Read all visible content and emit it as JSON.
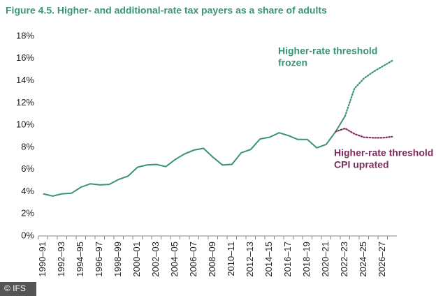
{
  "chart_data": {
    "type": "line",
    "title": "Figure 4.5. Higher- and additional-rate tax payers as a share of adults",
    "categories": [
      "1990–91",
      null,
      "1992–93",
      null,
      "1994–95",
      null,
      "1996–97",
      null,
      "1998–99",
      null,
      "2000–01",
      null,
      "2002–03",
      null,
      "2004–05",
      null,
      "2006–07",
      null,
      "2008–09",
      null,
      "2010–11",
      null,
      "2012–13",
      null,
      "2014–15",
      null,
      "2016–17",
      null,
      "2018–19",
      null,
      "2020–21",
      null,
      "2022–23",
      null,
      "2024–25",
      null,
      "2026–27",
      null
    ],
    "series": [
      {
        "color": "#3a9470",
        "style": "solid",
        "values": [
          3.8,
          3.6,
          3.8,
          3.85,
          4.4,
          4.7,
          4.6,
          4.65,
          5.1,
          5.4,
          6.2,
          6.4,
          6.45,
          6.25,
          6.9,
          7.4,
          7.75,
          7.9,
          7.1,
          6.4,
          6.45,
          7.5,
          7.8,
          8.75,
          8.9,
          9.3,
          9.05,
          8.7,
          8.7,
          7.95,
          8.25,
          9.4,
          10.8,
          null,
          null,
          null,
          null,
          null
        ]
      },
      {
        "color": "#3a9470",
        "style": "dotted",
        "values": [
          null,
          null,
          null,
          null,
          null,
          null,
          null,
          null,
          null,
          null,
          null,
          null,
          null,
          null,
          null,
          null,
          null,
          null,
          null,
          null,
          null,
          null,
          null,
          null,
          null,
          null,
          null,
          null,
          null,
          null,
          null,
          null,
          10.8,
          13.3,
          14.2,
          14.8,
          15.3,
          15.8
        ]
      },
      {
        "color": "#7b2d5e",
        "style": "dotted",
        "values": [
          null,
          null,
          null,
          null,
          null,
          null,
          null,
          null,
          null,
          null,
          null,
          null,
          null,
          null,
          null,
          null,
          null,
          null,
          null,
          null,
          null,
          null,
          null,
          null,
          null,
          null,
          null,
          null,
          null,
          null,
          null,
          9.4,
          9.7,
          9.2,
          8.9,
          8.85,
          8.85,
          8.95
        ]
      }
    ],
    "ylim": [
      0,
      18
    ],
    "yticks": [
      {
        "value": 0,
        "label": "0%"
      },
      {
        "value": 2,
        "label": "2%"
      },
      {
        "value": 4,
        "label": "4%"
      },
      {
        "value": 6,
        "label": "6%"
      },
      {
        "value": 8,
        "label": "8%"
      },
      {
        "value": 10,
        "label": "10%"
      },
      {
        "value": 12,
        "label": "12%"
      },
      {
        "value": 14,
        "label": "14%"
      },
      {
        "value": 16,
        "label": "16%"
      },
      {
        "value": 18,
        "label": "18%"
      }
    ],
    "grid": false,
    "annotations": [
      {
        "lines": [
          "Higher-rate threshold",
          "frozen"
        ],
        "color": "#3a9470"
      },
      {
        "lines": [
          "Higher-rate threshold",
          "CPI uprated"
        ],
        "color": "#7b2d5e"
      }
    ],
    "credit": "© IFS"
  }
}
